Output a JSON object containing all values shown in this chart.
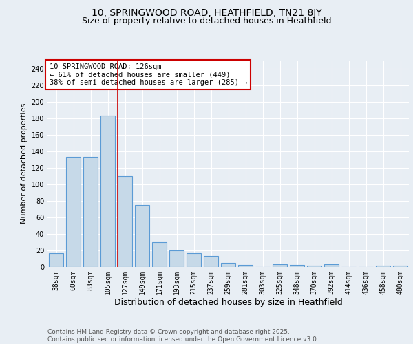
{
  "title1": "10, SPRINGWOOD ROAD, HEATHFIELD, TN21 8JY",
  "title2": "Size of property relative to detached houses in Heathfield",
  "xlabel": "Distribution of detached houses by size in Heathfield",
  "ylabel": "Number of detached properties",
  "bar_labels": [
    "38sqm",
    "60sqm",
    "83sqm",
    "105sqm",
    "127sqm",
    "149sqm",
    "171sqm",
    "193sqm",
    "215sqm",
    "237sqm",
    "259sqm",
    "281sqm",
    "303sqm",
    "325sqm",
    "348sqm",
    "370sqm",
    "392sqm",
    "414sqm",
    "436sqm",
    "458sqm",
    "480sqm"
  ],
  "bar_values": [
    16,
    133,
    133,
    183,
    110,
    75,
    30,
    20,
    16,
    13,
    5,
    2,
    0,
    3,
    2,
    1,
    3,
    0,
    0,
    1,
    1
  ],
  "bar_color": "#c6d9e8",
  "bar_edgecolor": "#5b9bd5",
  "property_line_index": 4,
  "property_line_color": "#cc0000",
  "annotation_line1": "10 SPRINGWOOD ROAD: 126sqm",
  "annotation_line2": "← 61% of detached houses are smaller (449)",
  "annotation_line3": "38% of semi-detached houses are larger (285) →",
  "annotation_box_color": "#ffffff",
  "annotation_box_edgecolor": "#cc0000",
  "ylim": [
    0,
    250
  ],
  "yticks": [
    0,
    20,
    40,
    60,
    80,
    100,
    120,
    140,
    160,
    180,
    200,
    220,
    240
  ],
  "background_color": "#e8eef4",
  "grid_color": "#ffffff",
  "footer_line1": "Contains HM Land Registry data © Crown copyright and database right 2025.",
  "footer_line2": "Contains public sector information licensed under the Open Government Licence v3.0.",
  "title1_fontsize": 10,
  "title2_fontsize": 9,
  "xlabel_fontsize": 9,
  "ylabel_fontsize": 8,
  "tick_fontsize": 7,
  "annotation_fontsize": 7.5,
  "footer_fontsize": 6.5
}
